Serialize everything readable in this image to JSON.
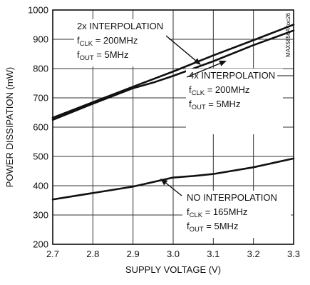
{
  "chart_data": {
    "type": "line",
    "xlabel": "SUPPLY VOLTAGE (V)",
    "ylabel": "POWER DISSIPATION (mW)",
    "xlim": [
      2.7,
      3.3
    ],
    "ylim": [
      200,
      1000
    ],
    "grid": true,
    "x_ticks": [
      "2.7",
      "2.8",
      "2.9",
      "3.0",
      "3.1",
      "3.2",
      "3.3"
    ],
    "y_ticks": [
      "200",
      "300",
      "400",
      "500",
      "600",
      "700",
      "800",
      "900",
      "1000"
    ],
    "series": [
      {
        "name": "2x INTERPOLATION, fCLK = 200MHz, fOUT = 5MHz",
        "x": [
          2.7,
          2.8,
          2.9,
          3.0,
          3.1,
          3.2,
          3.3
        ],
        "y": [
          632,
          685,
          738,
          790,
          845,
          897,
          950
        ]
      },
      {
        "name": "4x INTERPOLATION, fCLK = 200MHz, fOUT = 5MHz",
        "x": [
          2.7,
          2.8,
          2.9,
          2.95,
          3.0,
          3.1,
          3.2,
          3.3
        ],
        "y": [
          625,
          680,
          733,
          752,
          775,
          825,
          880,
          930
        ]
      },
      {
        "name": "NO INTERPOLATION, fCLK = 165MHz, fOUT = 5MHz",
        "x": [
          2.7,
          2.8,
          2.9,
          3.0,
          3.05,
          3.1,
          3.2,
          3.3
        ],
        "y": [
          353,
          375,
          397,
          428,
          433,
          440,
          463,
          493
        ]
      }
    ],
    "annotations": [
      {
        "line1": "2x INTERPOLATION",
        "clk_main": "f",
        "clk_sub": "CLK",
        "clk_rest": " = 200MHz",
        "out_main": "f",
        "out_sub": "OUT",
        "out_rest": " = 5MHz"
      },
      {
        "line1": "4x INTERPOLATION",
        "clk_main": "f",
        "clk_sub": "CLK",
        "clk_rest": " = 200MHz",
        "out_main": "f",
        "out_sub": "OUT",
        "out_rest": " = 5MHz"
      },
      {
        "line1": "NO INTERPOLATION",
        "clk_main": "f",
        "clk_sub": "CLK",
        "clk_rest": " = 165MHz",
        "out_main": "f",
        "out_sub": "OUT",
        "out_rest": " = 5MHz"
      }
    ],
    "watermark": "MAX5856A toc26"
  }
}
